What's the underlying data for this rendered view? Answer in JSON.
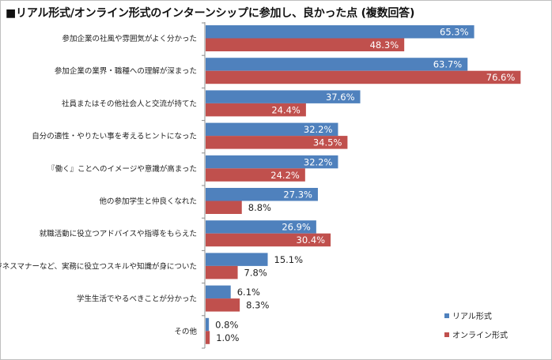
{
  "chart_data": {
    "type": "bar",
    "orientation": "horizontal",
    "title": "■リアル形式/オンライン形式のインターンシップに参加し、良かった点 (複数回答)",
    "unit": "%",
    "xlim": [
      0,
      90
    ],
    "categories": [
      "参加企業の社風や雰囲気がよく分かった",
      "参加企業の業界・職種への理解が深まった",
      "社員またはその他社会人と交流が持てた",
      "自分の適性・やりたい事を考えるヒントになった",
      "『働く』ことへのイメージや意識が高まった",
      "他の参加学生と仲良くなれた",
      "就職活動に役立つアドバイスや指導をもらえた",
      "ビジネスマナーなど、実務に役立つスキルや知識が身についた",
      "学生生活でやるべきことが分かった",
      "その他"
    ],
    "series": [
      {
        "name": "リアル形式",
        "color": "#4f81bd",
        "values": [
          65.3,
          63.7,
          37.6,
          32.2,
          32.2,
          27.3,
          26.9,
          15.1,
          6.1,
          0.8
        ]
      },
      {
        "name": "オンライン形式",
        "color": "#c0504d",
        "values": [
          48.3,
          76.6,
          24.4,
          34.5,
          24.2,
          8.8,
          30.4,
          7.8,
          8.3,
          1.0
        ]
      }
    ],
    "legend_position": "bottom-right"
  }
}
